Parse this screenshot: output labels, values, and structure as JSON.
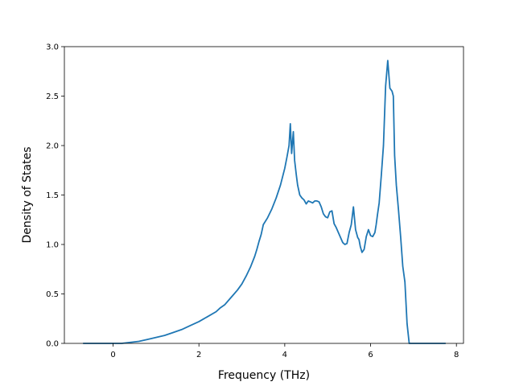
{
  "chart_data": {
    "type": "line",
    "title": "",
    "xlabel": "Frequency (THz)",
    "ylabel": "Density of States",
    "xlim": [
      -1.135,
      8.165
    ],
    "ylim": [
      0,
      3.0
    ],
    "grid": false,
    "xticks": [
      0,
      2,
      4,
      6,
      8
    ],
    "xtick_labels": [
      "0",
      "2",
      "4",
      "6",
      "8"
    ],
    "yticks": [
      0,
      0.5,
      1.0,
      1.5,
      2.0,
      2.5,
      3.0
    ],
    "ytick_labels": [
      "0.0",
      "0.5",
      "1.0",
      "1.5",
      "2.0",
      "2.5",
      "3.0"
    ],
    "colors": {
      "line": "#1f77b4",
      "axes": "#000000",
      "background": "#ffffff"
    },
    "series": [
      {
        "x": [
          -0.7,
          -0.3,
          0.0,
          0.2,
          0.4,
          0.6,
          0.8,
          1.0,
          1.2,
          1.4,
          1.6,
          1.8,
          2.0,
          2.2,
          2.4,
          2.5,
          2.6,
          2.7,
          2.8,
          2.9,
          3.0,
          3.1,
          3.2,
          3.3,
          3.35,
          3.4,
          3.45,
          3.5,
          3.6,
          3.7,
          3.8,
          3.9,
          4.0,
          4.05,
          4.1,
          4.13,
          4.16,
          4.2,
          4.23,
          4.27,
          4.3,
          4.35,
          4.4,
          4.45,
          4.5,
          4.55,
          4.6,
          4.65,
          4.7,
          4.75,
          4.8,
          4.85,
          4.9,
          4.95,
          5.0,
          5.05,
          5.1,
          5.15,
          5.2,
          5.25,
          5.3,
          5.35,
          5.4,
          5.45,
          5.5,
          5.55,
          5.6,
          5.65,
          5.7,
          5.73,
          5.76,
          5.8,
          5.85,
          5.9,
          5.95,
          6.0,
          6.05,
          6.1,
          6.13,
          6.16,
          6.2,
          6.25,
          6.3,
          6.35,
          6.4,
          6.45,
          6.5,
          6.53,
          6.56,
          6.6,
          6.65,
          6.7,
          6.75,
          6.8,
          6.85,
          6.9,
          6.95,
          7.0,
          7.05,
          7.1,
          7.5,
          7.75
        ],
        "y": [
          0.0,
          0.0,
          0.0,
          0.0,
          0.01,
          0.02,
          0.04,
          0.06,
          0.08,
          0.11,
          0.14,
          0.18,
          0.22,
          0.27,
          0.32,
          0.36,
          0.39,
          0.44,
          0.49,
          0.54,
          0.6,
          0.68,
          0.77,
          0.88,
          0.95,
          1.03,
          1.1,
          1.2,
          1.27,
          1.36,
          1.47,
          1.6,
          1.77,
          1.88,
          2.0,
          2.22,
          1.92,
          2.14,
          1.85,
          1.7,
          1.6,
          1.5,
          1.47,
          1.45,
          1.41,
          1.44,
          1.43,
          1.42,
          1.44,
          1.44,
          1.43,
          1.38,
          1.31,
          1.28,
          1.27,
          1.33,
          1.34,
          1.21,
          1.17,
          1.12,
          1.07,
          1.02,
          1.0,
          1.01,
          1.12,
          1.2,
          1.38,
          1.15,
          1.07,
          1.05,
          0.98,
          0.92,
          0.95,
          1.08,
          1.15,
          1.09,
          1.08,
          1.12,
          1.2,
          1.3,
          1.42,
          1.7,
          2.0,
          2.6,
          2.86,
          2.58,
          2.55,
          2.5,
          1.9,
          1.6,
          1.35,
          1.08,
          0.78,
          0.62,
          0.2,
          0.0,
          0.0,
          0.0,
          0.0,
          0.0,
          0.0,
          0.0
        ]
      }
    ]
  }
}
